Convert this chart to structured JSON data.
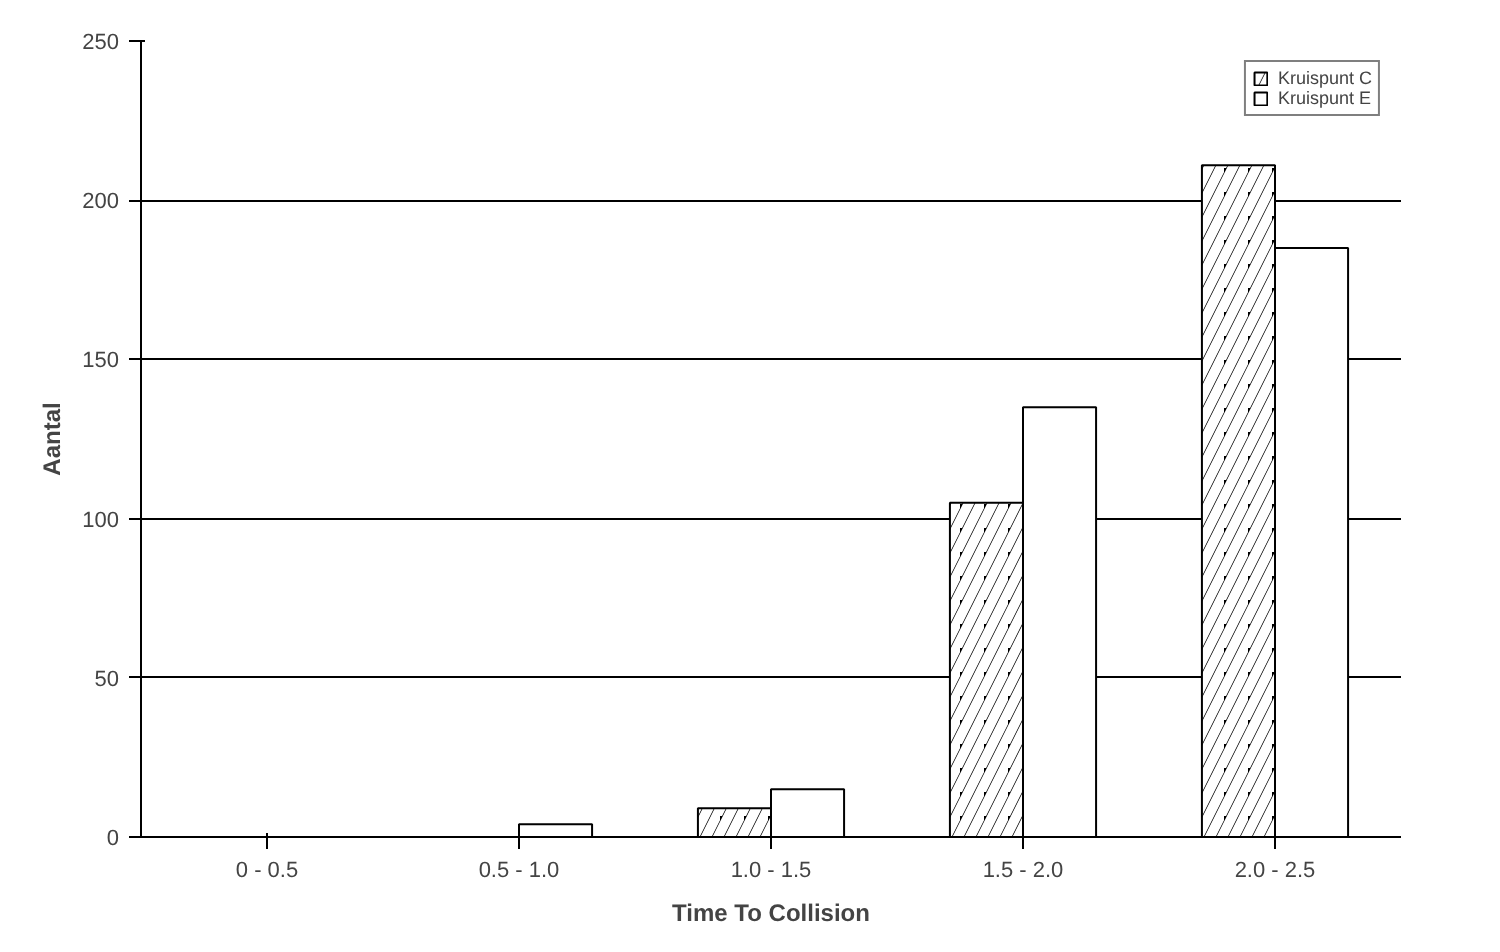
{
  "chart_data": {
    "type": "bar",
    "xlabel": "Time To Collision",
    "ylabel": "Aantal",
    "categories": [
      "0 - 0.5",
      "0.5 - 1.0",
      "1.0 - 1.5",
      "1.5 - 2.0",
      "2.0 - 2.5"
    ],
    "series": [
      {
        "name": "Kruispunt C",
        "color": "#000000",
        "values": [
          0,
          0,
          9,
          105,
          211
        ]
      },
      {
        "name": "Kruispunt E",
        "color": "#ffffff",
        "values": [
          0,
          4,
          15,
          135,
          185
        ]
      }
    ],
    "ylim": [
      0,
      250
    ],
    "yticks": [
      0,
      50,
      100,
      150,
      200,
      250
    ],
    "grid": "y",
    "legend": "top right"
  }
}
